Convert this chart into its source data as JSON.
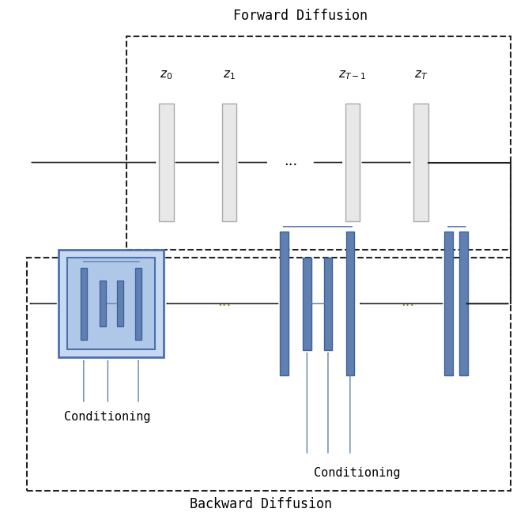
{
  "fig_width": 6.73,
  "fig_height": 6.58,
  "dpi": 100,
  "bg_color": "#ffffff",
  "title_forward": "Forward Diffusion",
  "title_backward": "Backward Diffusion",
  "label_conditioning": "Conditioning",
  "gray_bar_color": "#e8e8e8",
  "gray_bar_edge": "#aaaaaa",
  "blue_bar_color": "#6080b0",
  "blue_bar_edge": "#4060a0",
  "blue_light": "#8090c0",
  "arrow_color": "#222222",
  "blue_arrow_color": "#6080b0",
  "blue_box_face": "#c8d8f0",
  "blue_box_edge": "#4a72b0",
  "blue_box_face2": "#b0c8e8",
  "dashed_color": "#222222"
}
